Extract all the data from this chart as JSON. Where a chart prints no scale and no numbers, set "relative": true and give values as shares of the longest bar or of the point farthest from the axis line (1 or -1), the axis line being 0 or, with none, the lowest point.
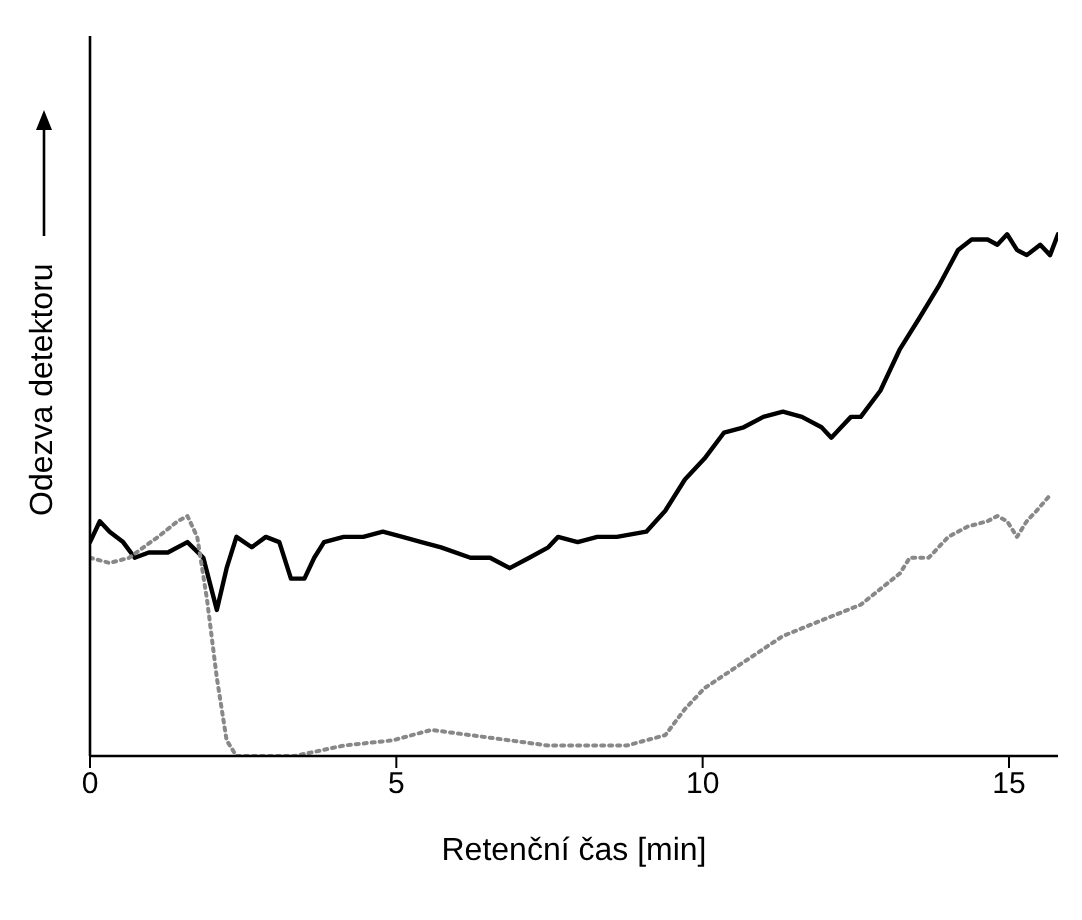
{
  "chart_data": {
    "type": "line",
    "xlabel": "Retenční čas [min]",
    "ylabel": "Odezva detektoru",
    "relative": true,
    "xlim": [
      0,
      15.8
    ],
    "xticks": [
      0,
      5,
      10,
      15
    ],
    "grid": false,
    "legend": false,
    "marker": "none",
    "series": [
      {
        "color": "#000000",
        "line_style": "solid",
        "x": [
          0,
          0.16,
          0.32,
          0.54,
          0.73,
          0.96,
          1.27,
          1.59,
          1.85,
          2.07,
          2.23,
          2.39,
          2.64,
          2.87,
          3.09,
          3.28,
          3.5,
          3.66,
          3.82,
          4.14,
          4.46,
          4.78,
          5.1,
          5.41,
          5.73,
          6.21,
          6.53,
          6.85,
          7.17,
          7.48,
          7.64,
          7.96,
          8.28,
          8.6,
          9.08,
          9.39,
          9.71,
          10.03,
          10.35,
          10.67,
          10.99,
          11.31,
          11.62,
          11.94,
          12.1,
          12.26,
          12.42,
          12.58,
          12.9,
          13.22,
          13.54,
          13.85,
          14.17,
          14.39,
          14.65,
          14.81,
          14.97,
          15.13,
          15.29,
          15.51,
          15.67,
          15.8
        ],
        "values": [
          0.41,
          0.45,
          0.43,
          0.41,
          0.38,
          0.39,
          0.39,
          0.41,
          0.38,
          0.28,
          0.36,
          0.42,
          0.4,
          0.42,
          0.41,
          0.34,
          0.34,
          0.38,
          0.41,
          0.42,
          0.42,
          0.43,
          0.42,
          0.41,
          0.4,
          0.38,
          0.38,
          0.36,
          0.38,
          0.4,
          0.42,
          0.41,
          0.42,
          0.42,
          0.43,
          0.47,
          0.53,
          0.57,
          0.62,
          0.63,
          0.65,
          0.66,
          0.65,
          0.63,
          0.61,
          0.63,
          0.65,
          0.65,
          0.7,
          0.78,
          0.84,
          0.9,
          0.97,
          0.99,
          0.99,
          0.98,
          1,
          0.97,
          0.96,
          0.98,
          0.96,
          1
        ]
      },
      {
        "color": "#888888",
        "line_style": "dotted",
        "x": [
          0,
          0.32,
          0.64,
          1.11,
          1.43,
          1.59,
          1.75,
          1.91,
          2.07,
          2.23,
          2.39,
          2.71,
          3.34,
          4.14,
          4.94,
          5.57,
          6.21,
          6.85,
          7.48,
          8.12,
          8.76,
          9.39,
          9.71,
          10.03,
          10.67,
          11.31,
          11.94,
          12.58,
          13.22,
          13.38,
          13.69,
          14.01,
          14.33,
          14.65,
          14.81,
          14.97,
          15.13,
          15.29,
          15.45,
          15.67
        ],
        "values": [
          0.38,
          0.37,
          0.38,
          0.42,
          0.45,
          0.46,
          0.42,
          0.3,
          0.15,
          0.03,
          0,
          0,
          0,
          0.02,
          0.03,
          0.05,
          0.04,
          0.03,
          0.02,
          0.02,
          0.02,
          0.04,
          0.09,
          0.13,
          0.18,
          0.23,
          0.26,
          0.29,
          0.35,
          0.38,
          0.38,
          0.42,
          0.44,
          0.45,
          0.46,
          0.45,
          0.42,
          0.45,
          0.47,
          0.5
        ]
      }
    ]
  }
}
